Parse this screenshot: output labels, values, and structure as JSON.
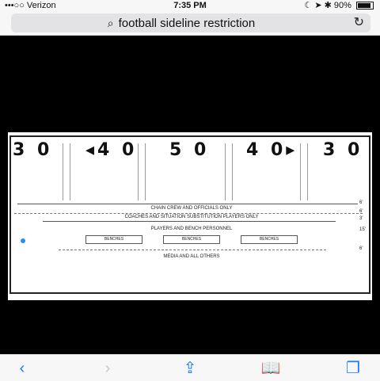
{
  "status": {
    "carrier": "•••○○ Verizon",
    "time": "7:35 PM",
    "battery": "90%",
    "battery_level": 0.9
  },
  "browser": {
    "query": "football sideline restriction",
    "reload_icon": "reload-icon",
    "search_icon": "search-icon"
  },
  "diagram": {
    "yard_numbers": [
      "3 0",
      "◂4 0",
      "5 0",
      "4 0▸",
      "3 0"
    ],
    "labels": {
      "chain_crew": "CHAIN CREW AND OFFICIALS ONLY",
      "coaches": "COACHES AND SITUATION SUBSTITUTION PLAYERS ONLY",
      "players": "PLAYERS AND BENCH PERSONNEL",
      "media": "MEDIA AND ALL OTHERS"
    },
    "benches": [
      "BENCHES",
      "BENCHES",
      "BENCHES"
    ],
    "measurements": [
      "6'",
      "6'",
      "3'",
      "15'",
      "6'"
    ]
  },
  "toolbar": {
    "back": "‹",
    "forward": "›",
    "share": "⇪",
    "bookmarks": "📖",
    "tabs": "❐"
  }
}
